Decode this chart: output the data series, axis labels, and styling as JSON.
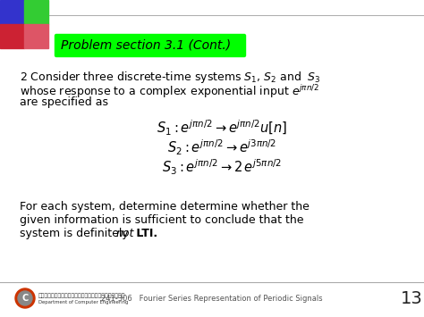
{
  "bg_color": "#ffffff",
  "header_bg": "#00ff00",
  "header_text": "Problem section 3.1 (Cont.)",
  "header_text_color": "#000000",
  "header_font_size": 10,
  "divider_color": "#aaaaaa",
  "footer_text": "241-306   Fourier Series Representation of Periodic Signals",
  "page_num": "13",
  "corner_blue": "#3333cc",
  "corner_green": "#33cc33",
  "corner_red": "#cc2233",
  "corner_pink": "#dd5566",
  "body_font_size": 9.0,
  "eq_font_size": 10.5
}
